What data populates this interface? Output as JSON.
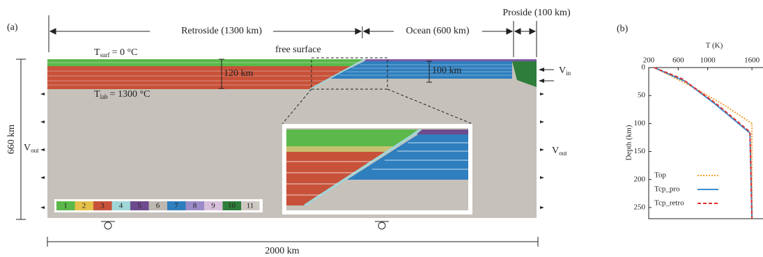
{
  "panel_a": {
    "label": "(a)",
    "retroside": "Retroside (1300 km)",
    "ocean": "Ocean (600 km)",
    "proside": "Proside (100 km)",
    "t_surf": {
      "symbol": "T",
      "subscript": "surf",
      "text": "= 0 °C"
    },
    "free_surface": "free surface",
    "thickness_left": "120 km",
    "thickness_right": "100 km",
    "v_in": {
      "symbol": "V",
      "subscript": "in"
    },
    "t_lab": {
      "symbol": "T",
      "subscript": "lab",
      "text": "= 1300 °C"
    },
    "depth": "660 km",
    "v_out_left": {
      "symbol": "V",
      "subscript": "out"
    },
    "v_out_right": {
      "symbol": "V",
      "subscript": "out"
    },
    "legend": [
      "1",
      "2",
      "3",
      "4",
      "5",
      "6",
      "7",
      "8",
      "9",
      "10",
      "11"
    ],
    "width": "2000 km"
  },
  "chart_data": {
    "type": "line",
    "panel_label": "(b)",
    "x_label": "T (K)",
    "y_label": "Depth (km)",
    "xlim": [
      200,
      1750
    ],
    "ylim": [
      0,
      270
    ],
    "y_inverted": true,
    "x_axis_top": true,
    "xticks": [
      200,
      600,
      1000,
      1600
    ],
    "yticks": [
      0,
      50,
      100,
      150,
      200,
      250
    ],
    "legend_position": "lower left",
    "series": [
      {
        "name": "Top",
        "color": "#f0a030",
        "dash": "dotted",
        "x": [
          273,
          500,
          800,
          1200,
          1600,
          1600
        ],
        "values": [
          0,
          15,
          35,
          65,
          100,
          270
        ]
      },
      {
        "name": "Tcp_pro",
        "color": "#3a8fd0",
        "dash": "solid",
        "x": [
          273,
          700,
          1100,
          1573,
          1600
        ],
        "values": [
          0,
          25,
          65,
          117,
          270
        ]
      },
      {
        "name": "Tcp_retro",
        "color": "#e03030",
        "dash": "dashed",
        "x": [
          273,
          650,
          1100,
          1573,
          1600
        ],
        "values": [
          0,
          20,
          63,
          115,
          270
        ]
      }
    ]
  }
}
